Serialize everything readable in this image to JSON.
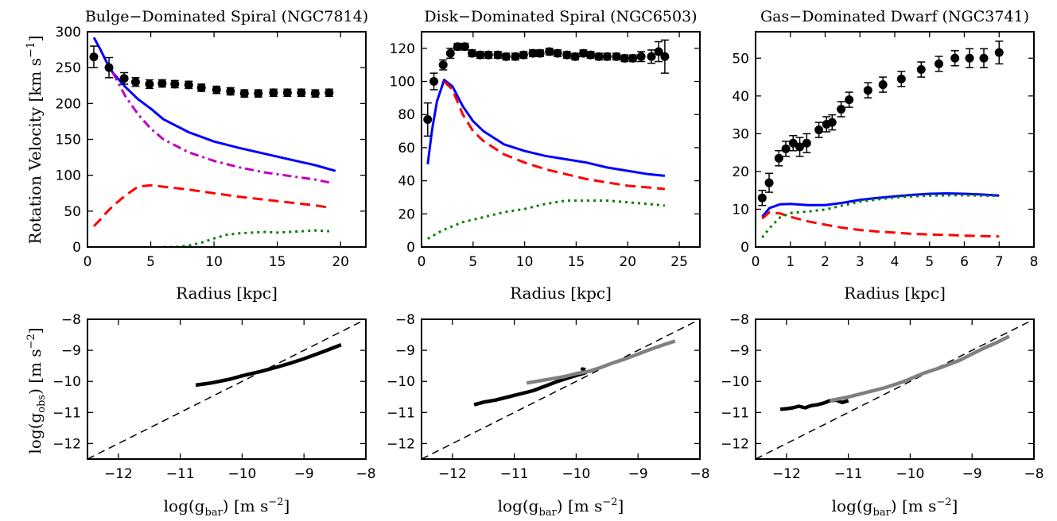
{
  "figure": {
    "y_label_top": "Rotation Velocity [km s",
    "y_label_top_exp": "−1",
    "y_label_top_close": "]",
    "x_label_top": "Radius [kpc]",
    "x_label_bottom": "log(g",
    "x_label_bottom_sub": "bar",
    "x_label_bottom_unit": ") [m s",
    "x_label_bottom_exp": "−2",
    "x_label_bottom_close": "]",
    "y_label_bottom": "log(g",
    "y_label_bottom_sub": "obs",
    "y_label_bottom_unit": ") [m s",
    "y_label_bottom_exp": "−2",
    "y_label_bottom_close": "]"
  },
  "colors": {
    "total": "#0000ff",
    "disk": "#ff0000",
    "gas": "#008000",
    "bulge": "#bf00bf",
    "data": "#000000",
    "rar_outer": "#000000",
    "rar_inner": "#808080",
    "one_to_one": "#000000"
  },
  "chart_data": [
    {
      "type": "scatter",
      "title": "Bulge−Dominated Spiral (NGC7814)",
      "xlabel": "Radius [kpc]",
      "ylabel": "Rotation Velocity [km s−1]",
      "xlim": [
        0,
        22
      ],
      "ylim": [
        0,
        300
      ],
      "xticks": [
        0,
        5,
        10,
        15,
        20
      ],
      "yticks": [
        0,
        50,
        100,
        150,
        200,
        250,
        300
      ],
      "observed": {
        "r": [
          0.5,
          1.7,
          2.9,
          3.8,
          4.9,
          5.9,
          6.9,
          8.0,
          9.0,
          10.2,
          11.3,
          12.4,
          13.5,
          14.7,
          15.8,
          16.9,
          18.0,
          19.1
        ],
        "v": [
          265,
          250,
          235,
          230,
          227,
          228,
          227,
          226,
          222,
          219,
          217,
          214,
          214,
          215,
          215,
          215,
          214,
          215
        ],
        "err": [
          15,
          14,
          8,
          6,
          6,
          5,
          5,
          5,
          5,
          5,
          5,
          5,
          5,
          5,
          5,
          5,
          5,
          5
        ]
      },
      "series": [
        {
          "name": "total",
          "r": [
            0.5,
            1,
            1.5,
            2,
            3,
            4,
            5,
            6,
            8,
            10,
            12,
            14,
            16,
            18,
            19.6
          ],
          "v": [
            292,
            276,
            258,
            243,
            223,
            206,
            193,
            178,
            160,
            147,
            138,
            130,
            122,
            114,
            106
          ]
        },
        {
          "name": "disk",
          "r": [
            0.5,
            1,
            1.5,
            2,
            3,
            4,
            5,
            6,
            8,
            10,
            12,
            14,
            16,
            18,
            19.1
          ],
          "v": [
            29,
            38,
            48,
            57,
            72,
            84,
            86,
            84,
            80,
            75,
            70,
            66,
            62,
            58,
            55
          ]
        },
        {
          "name": "gas",
          "r": [
            6,
            7,
            8,
            9,
            10,
            11,
            12,
            13,
            14,
            15,
            16,
            17,
            18,
            19.1
          ],
          "v": [
            0,
            0,
            2,
            6,
            12,
            17,
            19,
            20,
            21,
            20,
            21,
            22,
            23,
            22
          ]
        },
        {
          "name": "bulge",
          "r": [
            2,
            3,
            4,
            5,
            6,
            8,
            10,
            12,
            14,
            16,
            18,
            19.1
          ],
          "v": [
            243,
            210,
            185,
            165,
            150,
            132,
            120,
            111,
            104,
            99,
            94,
            90
          ]
        }
      ]
    },
    {
      "type": "scatter",
      "title": "Disk−Dominated Spiral (NGC6503)",
      "xlabel": "Radius [kpc]",
      "xlim": [
        0,
        27
      ],
      "ylim": [
        0,
        130
      ],
      "xticks": [
        0,
        5,
        10,
        15,
        20,
        25
      ],
      "yticks": [
        0,
        20,
        40,
        60,
        80,
        100,
        120
      ],
      "observed": {
        "r": [
          0.6,
          1.2,
          2.1,
          2.8,
          3.5,
          4.2,
          4.9,
          5.7,
          6.5,
          7.4,
          8.2,
          9.1,
          9.9,
          10.8,
          11.5,
          12.4,
          13.2,
          14.1,
          14.9,
          15.7,
          16.4,
          17.2,
          18.0,
          18.9,
          19.7,
          20.5,
          21.3,
          22.3,
          23.0,
          23.6
        ],
        "v": [
          77,
          100,
          110,
          117,
          121,
          121,
          117,
          116,
          116,
          116,
          115,
          115,
          116,
          117,
          117,
          118,
          117,
          116,
          115,
          117,
          116,
          115,
          115,
          115,
          114,
          114,
          115,
          115,
          118,
          115
        ],
        "err": [
          10,
          5,
          3,
          3,
          2,
          2,
          2,
          2,
          2,
          2,
          2,
          2,
          2,
          2,
          2,
          2,
          2,
          2,
          2,
          2,
          2,
          2,
          2,
          2,
          2,
          2,
          3,
          4,
          6,
          10
        ]
      },
      "series": [
        {
          "name": "total",
          "r": [
            0.6,
            1,
            1.5,
            2.2,
            3,
            4,
            5,
            6,
            8,
            10,
            12,
            14,
            16,
            18,
            20,
            22,
            23.6
          ],
          "v": [
            50,
            70,
            88,
            101,
            97,
            85,
            76,
            70,
            62,
            58,
            55,
            53,
            51,
            48,
            46,
            44,
            43
          ]
        },
        {
          "name": "disk",
          "r": [
            2.2,
            3,
            4,
            5,
            6,
            8,
            10,
            12,
            14,
            16,
            18,
            20,
            22,
            23.6
          ],
          "v": [
            100,
            95,
            80,
            70,
            64,
            56,
            51,
            47,
            44,
            41,
            39,
            37,
            36,
            35
          ]
        },
        {
          "name": "gas",
          "r": [
            0.6,
            2,
            4,
            6,
            8,
            10,
            12,
            14,
            16,
            18,
            20,
            22,
            23.6
          ],
          "v": [
            5,
            10,
            15,
            18,
            21,
            23,
            26,
            28,
            28,
            28,
            27,
            26,
            25
          ]
        }
      ]
    },
    {
      "type": "scatter",
      "title": "Gas−Dominated Dwarf (NGC3741)",
      "xlabel": "Radius [kpc]",
      "xlim": [
        0,
        8
      ],
      "ylim": [
        0,
        57
      ],
      "xticks": [
        0,
        1,
        2,
        3,
        4,
        5,
        6,
        7,
        8
      ],
      "yticks": [
        0,
        10,
        20,
        30,
        40,
        50
      ],
      "observed": {
        "r": [
          0.19,
          0.39,
          0.67,
          0.87,
          1.08,
          1.27,
          1.47,
          1.82,
          2.04,
          2.2,
          2.46,
          2.69,
          3.23,
          3.66,
          4.19,
          4.76,
          5.27,
          5.73,
          6.15,
          6.56,
          7.0
        ],
        "v": [
          13,
          17,
          23.5,
          26,
          27.5,
          26.5,
          27.5,
          31,
          32.5,
          33,
          36.5,
          39,
          41.5,
          43,
          44.5,
          47,
          48.5,
          50,
          50,
          50,
          51.5
        ],
        "err": [
          2,
          2.5,
          2,
          2,
          2,
          2.5,
          2.5,
          2,
          2,
          2,
          2,
          2,
          2,
          2,
          2,
          2,
          2,
          2,
          2.5,
          2.5,
          3
        ]
      },
      "series": [
        {
          "name": "total",
          "r": [
            0.19,
            0.4,
            0.7,
            1.0,
            1.5,
            2.0,
            2.5,
            3.0,
            3.5,
            4.0,
            4.5,
            5.0,
            5.5,
            6.0,
            6.5,
            7.0
          ],
          "v": [
            8,
            10.3,
            11.3,
            11.4,
            11.1,
            11.1,
            11.7,
            12.5,
            13.0,
            13.4,
            13.8,
            14.1,
            14.2,
            14.1,
            13.9,
            13.6
          ]
        },
        {
          "name": "disk",
          "r": [
            0.19,
            0.4,
            0.7,
            1.0,
            1.5,
            2.0,
            2.5,
            3.0,
            3.5,
            4.0,
            4.5,
            5.0,
            5.5,
            6.0,
            6.5,
            7.0
          ],
          "v": [
            7.5,
            9.2,
            8.9,
            8.0,
            6.8,
            5.9,
            5.1,
            4.5,
            4.1,
            3.8,
            3.5,
            3.3,
            3.2,
            3.0,
            2.9,
            2.8
          ]
        },
        {
          "name": "gas",
          "r": [
            0.19,
            0.4,
            0.7,
            1.0,
            1.5,
            2.0,
            2.5,
            3.0,
            3.5,
            4.0,
            4.5,
            5.0,
            5.5,
            6.0,
            6.5,
            7.0
          ],
          "v": [
            2.5,
            5.0,
            7.8,
            9.0,
            9.4,
            9.9,
            11.0,
            12.0,
            12.6,
            13.1,
            13.4,
            13.6,
            13.7,
            13.7,
            13.6,
            13.5
          ]
        }
      ]
    },
    {
      "type": "line",
      "title": "",
      "xlabel": "log(gbar) [m s−2]",
      "ylabel": "log(gobs) [m s−2]",
      "xlim": [
        -12.5,
        -8
      ],
      "ylim": [
        -12.5,
        -8
      ],
      "xticks": [
        -12,
        -11,
        -10,
        -9,
        -8
      ],
      "yticks": [
        -12,
        -11,
        -10,
        -9,
        -8
      ],
      "one_to_one": true,
      "series": [
        {
          "name": "outer",
          "x": [
            -10.75,
            -10.5,
            -10.2,
            -10.0,
            -9.7,
            -9.4,
            -9.2,
            -9.0,
            -8.7,
            -8.4
          ],
          "y": [
            -10.12,
            -10.05,
            -9.93,
            -9.82,
            -9.68,
            -9.52,
            -9.4,
            -9.27,
            -9.05,
            -8.82
          ]
        }
      ]
    },
    {
      "type": "line",
      "title": "",
      "xlabel": "log(gbar) [m s−2]",
      "xlim": [
        -12.5,
        -8
      ],
      "ylim": [
        -12.5,
        -8
      ],
      "xticks": [
        -12,
        -11,
        -10,
        -9,
        -8
      ],
      "yticks": [
        -12,
        -11,
        -10,
        -9,
        -8
      ],
      "one_to_one": true,
      "series": [
        {
          "name": "outer",
          "x": [
            -11.65,
            -11.5,
            -11.3,
            -11.0,
            -10.7,
            -10.5,
            -10.3,
            -10.1,
            -9.95,
            -9.85,
            -9.9,
            -9.85
          ],
          "y": [
            -10.75,
            -10.67,
            -10.6,
            -10.45,
            -10.3,
            -10.15,
            -10.0,
            -9.87,
            -9.78,
            -9.72,
            -9.6,
            -9.62
          ]
        },
        {
          "name": "inner",
          "x": [
            -10.8,
            -10.5,
            -10.2,
            -10.0,
            -9.8,
            -9.6,
            -9.4,
            -9.2,
            -9.0,
            -8.8,
            -8.6,
            -8.4
          ],
          "y": [
            -10.05,
            -9.95,
            -9.85,
            -9.75,
            -9.68,
            -9.55,
            -9.4,
            -9.27,
            -9.12,
            -8.97,
            -8.83,
            -8.7
          ]
        }
      ]
    },
    {
      "type": "line",
      "title": "",
      "xlabel": "log(gbar) [m s−2]",
      "xlim": [
        -12.5,
        -8
      ],
      "ylim": [
        -12.5,
        -8
      ],
      "xticks": [
        -12,
        -11,
        -10,
        -9,
        -8
      ],
      "yticks": [
        -12,
        -11,
        -10,
        -9,
        -8
      ],
      "one_to_one": true,
      "series": [
        {
          "name": "outer",
          "x": [
            -12.1,
            -12.0,
            -11.9,
            -11.8,
            -11.7,
            -11.6,
            -11.5,
            -11.4,
            -11.3,
            -11.2,
            -11.1,
            -11.0
          ],
          "y": [
            -10.9,
            -10.88,
            -10.85,
            -10.8,
            -10.85,
            -10.78,
            -10.75,
            -10.7,
            -10.62,
            -10.6,
            -10.68,
            -10.62
          ]
        },
        {
          "name": "inner",
          "x": [
            -11.3,
            -11.0,
            -10.7,
            -10.4,
            -10.1,
            -9.8,
            -9.5,
            -9.2,
            -9.0,
            -8.8,
            -8.6,
            -8.4
          ],
          "y": [
            -10.62,
            -10.5,
            -10.35,
            -10.2,
            -10.0,
            -9.75,
            -9.55,
            -9.32,
            -9.12,
            -8.92,
            -8.75,
            -8.55
          ]
        }
      ]
    }
  ]
}
